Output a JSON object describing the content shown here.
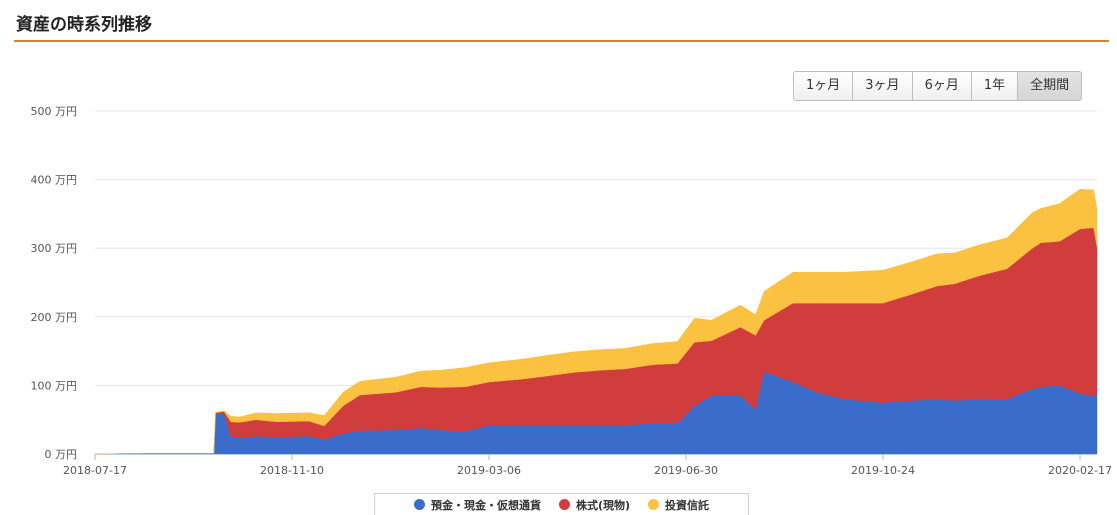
{
  "header": {
    "title": "資産の時系列推移"
  },
  "range_buttons": [
    {
      "label": "1ヶ月",
      "active": false
    },
    {
      "label": "3ヶ月",
      "active": false
    },
    {
      "label": "6ヶ月",
      "active": false
    },
    {
      "label": "1年",
      "active": false
    },
    {
      "label": "全期間",
      "active": true
    }
  ],
  "colors": {
    "deposit": "#3a6ccb",
    "stock": "#d13d3d",
    "fund": "#fbc140",
    "grid": "#e6e6e6"
  },
  "chart_data": {
    "type": "area",
    "stacked": true,
    "title": "",
    "xlabel": "",
    "ylabel": "",
    "ylim": [
      0,
      500
    ],
    "y_unit": "万円",
    "y_ticks": [
      {
        "value": 0,
        "label": "0 万円"
      },
      {
        "value": 100,
        "label": "100 万円"
      },
      {
        "value": 200,
        "label": "200 万円"
      },
      {
        "value": 300,
        "label": "300 万円"
      },
      {
        "value": 400,
        "label": "400 万円"
      },
      {
        "value": 500,
        "label": "500 万円"
      }
    ],
    "x_ticks": [
      "2018-07-17",
      "2018-11-10",
      "2019-03-06",
      "2019-06-30",
      "2019-10-24",
      "2020-02-17"
    ],
    "xlim": [
      "2018-07-17",
      "2020-02-27"
    ],
    "grid": true,
    "legend_position": "bottom",
    "x": [
      "2018-07-17",
      "2018-08-15",
      "2018-09-10",
      "2018-09-25",
      "2018-09-26",
      "2018-10-01",
      "2018-10-05",
      "2018-10-10",
      "2018-10-20",
      "2018-11-01",
      "2018-11-20",
      "2018-11-29",
      "2018-12-10",
      "2018-12-20",
      "2019-01-10",
      "2019-01-25",
      "2019-02-05",
      "2019-02-20",
      "2019-03-06",
      "2019-03-25",
      "2019-04-10",
      "2019-04-25",
      "2019-05-10",
      "2019-05-25",
      "2019-06-10",
      "2019-06-25",
      "2019-07-05",
      "2019-07-15",
      "2019-08-01",
      "2019-08-10",
      "2019-08-15",
      "2019-09-01",
      "2019-09-15",
      "2019-10-01",
      "2019-10-24",
      "2019-11-10",
      "2019-11-25",
      "2019-12-05",
      "2019-12-20",
      "2020-01-05",
      "2020-01-20",
      "2020-01-25",
      "2020-02-05",
      "2020-02-17",
      "2020-02-25",
      "2020-02-27"
    ],
    "series": [
      {
        "name": "預金・現金・仮想通貨",
        "key": "deposit",
        "values": [
          0,
          1,
          1,
          1,
          58,
          60,
          25,
          24,
          26,
          25,
          26,
          21,
          30,
          34,
          35,
          38,
          35,
          33,
          42,
          42,
          42,
          42,
          42,
          42,
          45,
          45,
          70,
          85,
          85,
          65,
          120,
          105,
          90,
          80,
          75,
          78,
          80,
          78,
          80,
          80,
          95,
          98,
          100,
          88,
          85,
          87
        ]
      },
      {
        "name": "株式(現物)",
        "key": "stock",
        "values": [
          0,
          0,
          0,
          0,
          2,
          2,
          22,
          22,
          24,
          22,
          22,
          20,
          40,
          52,
          55,
          60,
          62,
          65,
          63,
          67,
          72,
          77,
          80,
          82,
          85,
          87,
          93,
          80,
          100,
          108,
          75,
          115,
          130,
          140,
          145,
          155,
          165,
          170,
          180,
          190,
          205,
          210,
          210,
          240,
          245,
          215
        ]
      },
      {
        "name": "投資信託",
        "key": "fund",
        "values": [
          0,
          0,
          0,
          0,
          1,
          1,
          8,
          8,
          10,
          12,
          12,
          15,
          20,
          20,
          22,
          23,
          25,
          28,
          28,
          29,
          30,
          30,
          30,
          30,
          31,
          32,
          35,
          30,
          32,
          30,
          42,
          45,
          45,
          45,
          48,
          47,
          47,
          45,
          45,
          45,
          52,
          50,
          55,
          58,
          55,
          55
        ]
      }
    ]
  }
}
